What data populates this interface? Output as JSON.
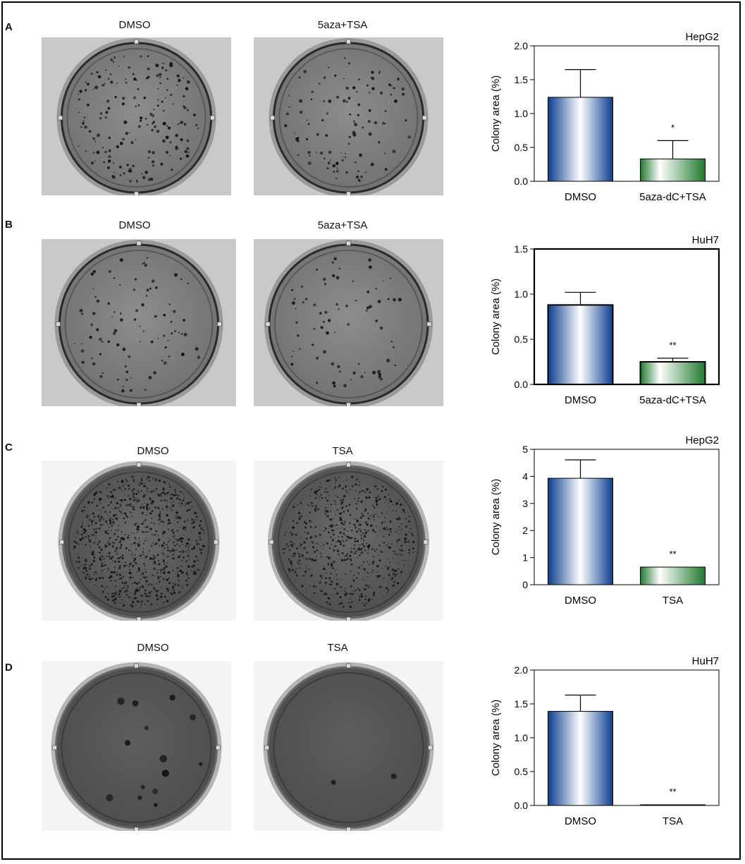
{
  "panels": [
    {
      "letter": "A",
      "plate_labels": [
        "DMSO",
        "5aza+TSA"
      ],
      "plate_style": "gray",
      "cell_line": "HepG2"
    },
    {
      "letter": "B",
      "plate_labels": [
        "DMSO",
        "5aza+TSA"
      ],
      "plate_style": "gray",
      "cell_line": "HuH7"
    },
    {
      "letter": "C",
      "plate_labels": [
        "DMSO",
        "TSA"
      ],
      "plate_style": "white",
      "cell_line": "HepG2"
    },
    {
      "letter": "D",
      "plate_labels": [
        "DMSO",
        "TSA"
      ],
      "plate_style": "white",
      "cell_line": "HuH7"
    }
  ],
  "colors": {
    "bar_dmso_edge": "#0b3f8e",
    "bar_dmso_mid": "#ffffff",
    "bar_treat_edge": "#1f7a2e",
    "bar_treat_mid": "#ffffff"
  },
  "chart_data": [
    {
      "type": "bar",
      "title": "HepG2",
      "ylabel": "Colony area (%)",
      "categories": [
        "DMSO",
        "5aza-dC+TSA"
      ],
      "values": [
        1.24,
        0.33
      ],
      "errors": [
        0.41,
        0.27
      ],
      "significance": [
        "",
        "*"
      ],
      "ylim": [
        0,
        2.0
      ],
      "yticks": [
        "0.0",
        "0.5",
        "1.0",
        "1.5",
        "2.0"
      ],
      "ytick_values": [
        0,
        0.5,
        1.0,
        1.5,
        2.0
      ],
      "bold_frame": false
    },
    {
      "type": "bar",
      "title": "HuH7",
      "ylabel": "Colony area (%)",
      "categories": [
        "DMSO",
        "5aza-dC+TSA"
      ],
      "values": [
        0.88,
        0.25
      ],
      "errors": [
        0.14,
        0.04
      ],
      "significance": [
        "",
        "**"
      ],
      "ylim": [
        0,
        1.5
      ],
      "yticks": [
        "0.0",
        "0.5",
        "1.0",
        "1.5"
      ],
      "ytick_values": [
        0,
        0.5,
        1.0,
        1.5
      ],
      "bold_frame": true
    },
    {
      "type": "bar",
      "title": "HepG2",
      "ylabel": "Colony area (%)",
      "categories": [
        "DMSO",
        "TSA"
      ],
      "values": [
        3.93,
        0.65
      ],
      "errors": [
        0.68,
        0
      ],
      "significance": [
        "",
        "**"
      ],
      "ylim": [
        0,
        5
      ],
      "yticks": [
        "0",
        "1",
        "2",
        "3",
        "4",
        "5"
      ],
      "ytick_values": [
        0,
        1,
        2,
        3,
        4,
        5
      ],
      "bold_frame": false
    },
    {
      "type": "bar",
      "title": "HuH7",
      "ylabel": "Colony area (%)",
      "categories": [
        "DMSO",
        "TSA"
      ],
      "values": [
        1.39,
        0.01
      ],
      "errors": [
        0.24,
        0
      ],
      "significance": [
        "",
        "**"
      ],
      "ylim": [
        0,
        2.0
      ],
      "yticks": [
        "0.0",
        "0.5",
        "1.0",
        "1.5",
        "2.0"
      ],
      "ytick_values": [
        0,
        0.5,
        1.0,
        1.5,
        2.0
      ],
      "bold_frame": false
    }
  ]
}
